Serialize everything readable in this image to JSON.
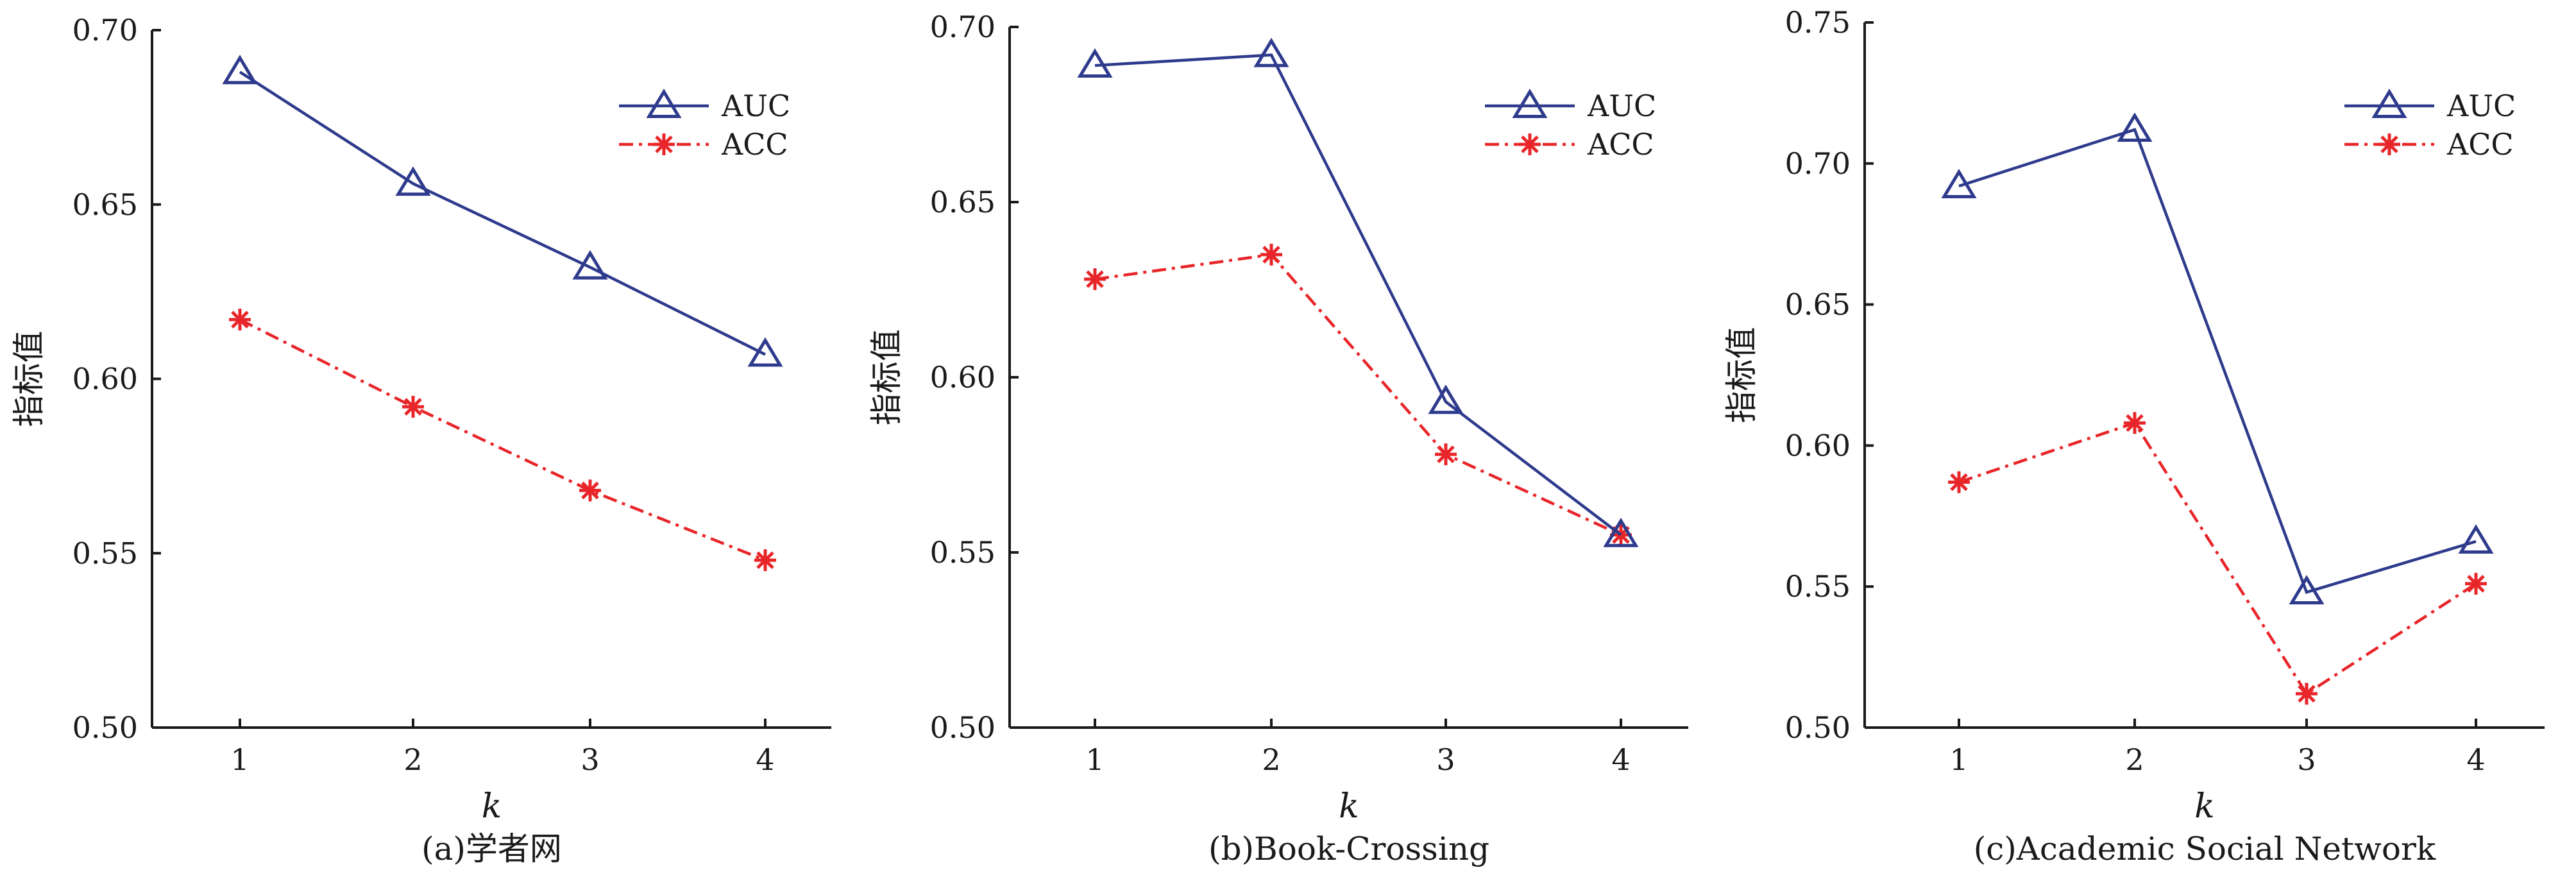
{
  "chart_data": [
    {
      "type": "line",
      "caption": "(a)学者网",
      "xlabel": "k",
      "ylabel": "指标值",
      "x": [
        1,
        2,
        3,
        4
      ],
      "ylim": [
        0.5,
        0.7
      ],
      "yticks": [
        "0.50",
        "0.55",
        "0.60",
        "0.65",
        "0.70"
      ],
      "legend": "top-right",
      "series": [
        {
          "name": "AUC",
          "values": [
            0.688,
            0.656,
            0.632,
            0.607
          ],
          "color": "#2e3a8c",
          "marker": "triangle-open",
          "line": "solid"
        },
        {
          "name": "ACC",
          "values": [
            0.617,
            0.592,
            0.568,
            0.548
          ],
          "color": "#e8262a",
          "marker": "asterisk",
          "line": "dash-dot"
        }
      ]
    },
    {
      "type": "line",
      "caption": "(b)Book-Crossing",
      "xlabel": "k",
      "ylabel": "指标值",
      "x": [
        1,
        2,
        3,
        4
      ],
      "ylim": [
        0.5,
        0.7
      ],
      "yticks": [
        "0.50",
        "0.55",
        "0.60",
        "0.65",
        "0.70"
      ],
      "legend": "top-right",
      "series": [
        {
          "name": "AUC",
          "values": [
            0.689,
            0.692,
            0.593,
            0.555
          ],
          "color": "#2e3a8c",
          "marker": "triangle-open",
          "line": "solid"
        },
        {
          "name": "ACC",
          "values": [
            0.628,
            0.635,
            0.578,
            0.555
          ],
          "color": "#e8262a",
          "marker": "asterisk",
          "line": "dash-dot"
        }
      ]
    },
    {
      "type": "line",
      "caption": "(c)Academic Social Network",
      "xlabel": "k",
      "ylabel": "指标值",
      "x": [
        1,
        2,
        3,
        4
      ],
      "ylim": [
        0.5,
        0.75
      ],
      "yticks": [
        "0.50",
        "0.55",
        "0.60",
        "0.65",
        "0.70",
        "0.75"
      ],
      "legend": "top-right",
      "series": [
        {
          "name": "AUC",
          "values": [
            0.692,
            0.712,
            0.548,
            0.566
          ],
          "color": "#2e3a8c",
          "marker": "triangle-open",
          "line": "solid"
        },
        {
          "name": "ACC",
          "values": [
            0.587,
            0.608,
            0.512,
            0.551
          ],
          "color": "#e8262a",
          "marker": "asterisk",
          "line": "dash-dot"
        }
      ]
    }
  ]
}
